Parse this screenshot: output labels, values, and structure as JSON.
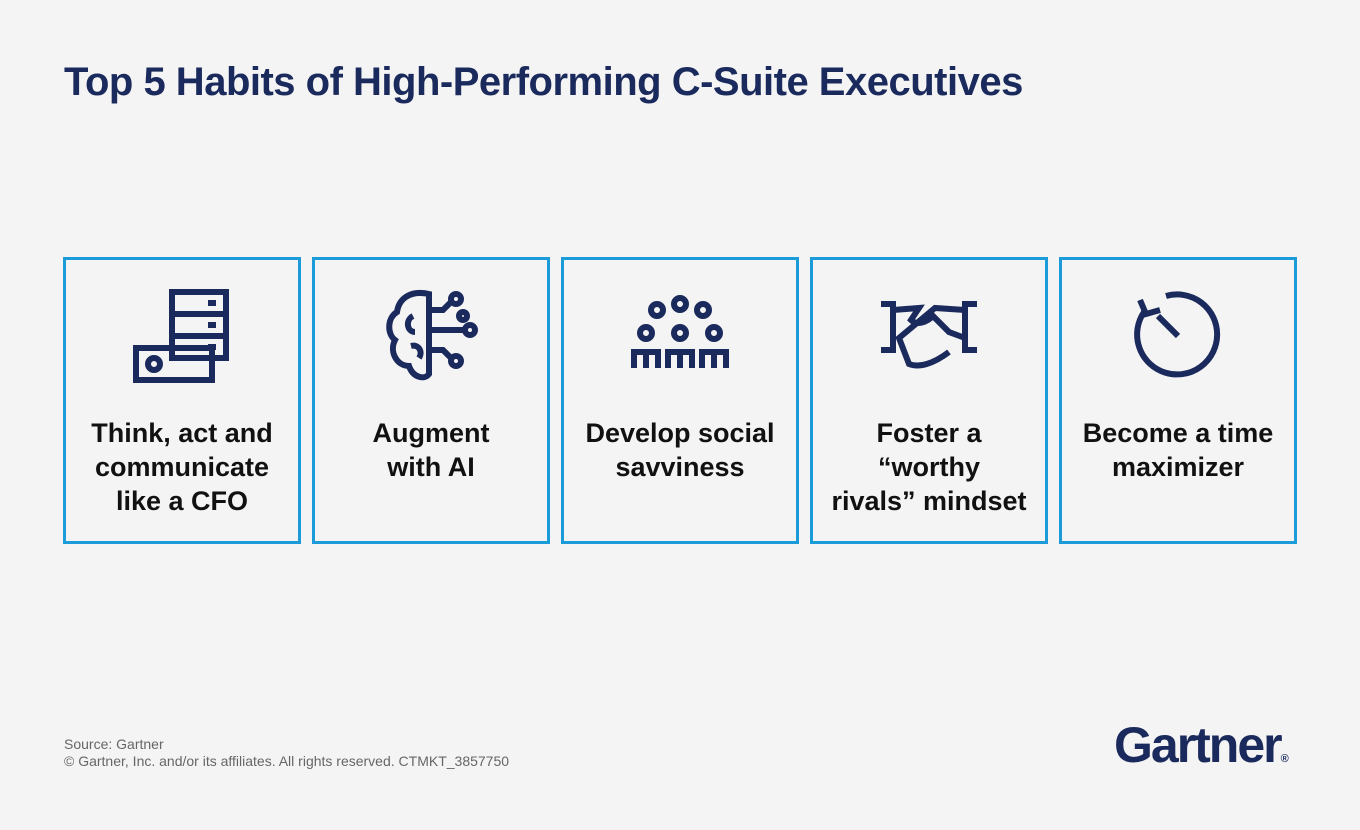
{
  "header": {
    "title": "Top 5 Habits of High-Performing C-Suite Executives"
  },
  "cards": [
    {
      "lines": [
        "Think, act and",
        "communicate",
        "like a CFO"
      ]
    },
    {
      "lines": [
        "Augment",
        "with AI"
      ]
    },
    {
      "lines": [
        "Develop social",
        "savviness"
      ]
    },
    {
      "lines": [
        "Foster a",
        "“worthy",
        "rivals” mindset"
      ]
    },
    {
      "lines": [
        "Become a time",
        "maximizer"
      ]
    }
  ],
  "footer": {
    "source": "Source: Gartner",
    "copyright": "© Gartner, Inc. and/or its affiliates. All rights reserved. CTMKT_3857750",
    "logo": "Gartner",
    "logo_mark": "®"
  }
}
